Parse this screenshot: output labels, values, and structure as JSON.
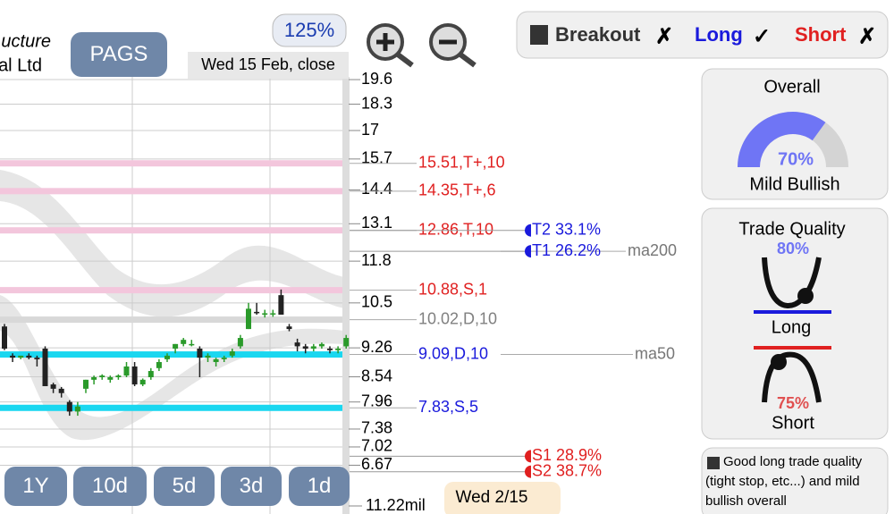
{
  "ui": {
    "company_line1": "ucture",
    "company_line2": "al Ltd",
    "symbol": "PAGS",
    "zoom": "125%",
    "date_label": "Wed 15 Feb, close",
    "signals": {
      "breakout": "Breakout",
      "breakout_mark": "✗",
      "long": "Long",
      "long_mark": "✓",
      "short": "Short",
      "short_mark": "✗"
    },
    "overall": {
      "title": "Overall",
      "score": {
        "value": 70,
        "label": "70%"
      },
      "verdict": "Mild Bullish"
    },
    "trade_quality": {
      "title": "Trade Quality",
      "long_score": "80%",
      "long_label": "Long",
      "short_score": "75%",
      "short_label": "Short"
    },
    "note": "Good long trade quality (tight stop, etc...) and mild bullish overall",
    "periods": [
      "1Y",
      "10d",
      "5d",
      "3d",
      "1d"
    ],
    "volume_label": "11.22mil",
    "cursor_date": "Wed 2/15"
  },
  "chart_data": {
    "type": "candlestick",
    "log_scale": true,
    "grid": true,
    "ylim": [
      5.82,
      19.75
    ],
    "yticks": [
      19.6,
      18.3,
      17,
      15.7,
      14.4,
      13.1,
      11.8,
      10.5,
      9.26,
      8.54,
      7.96,
      7.38,
      7.02,
      6.67
    ],
    "open": [
      9.83,
      9.06,
      9.01,
      9.06,
      9.01,
      9.24,
      8.36,
      8.26,
      7.96,
      7.75,
      8.26,
      8.47,
      8.53,
      8.47,
      8.53,
      8.57,
      8.79,
      8.36,
      8.53,
      8.75,
      8.97,
      9.24,
      9.36,
      9.36,
      9.24,
      9.01,
      8.9,
      8.97,
      9.06,
      9.3,
      9.76,
      10.24,
      10.16,
      10.2,
      10.73,
      9.83,
      9.4,
      9.3,
      9.24,
      9.3,
      9.24,
      9.2,
      9.3
    ],
    "high": [
      9.9,
      9.12,
      9.06,
      9.12,
      9.06,
      9.3,
      8.4,
      8.3,
      8.0,
      7.96,
      8.47,
      8.57,
      8.6,
      8.57,
      8.6,
      8.9,
      8.9,
      8.5,
      8.75,
      8.97,
      9.12,
      9.36,
      9.52,
      9.47,
      9.3,
      9.12,
      9.01,
      9.06,
      9.24,
      9.6,
      10.5,
      10.5,
      10.3,
      10.3,
      10.9,
      9.9,
      9.5,
      9.36,
      9.36,
      9.4,
      9.3,
      9.3,
      9.6
    ],
    "low": [
      9.2,
      8.9,
      8.97,
      8.97,
      8.79,
      8.32,
      8.16,
      8.06,
      7.66,
      7.66,
      8.16,
      8.36,
      8.47,
      8.4,
      8.47,
      8.53,
      8.32,
      8.32,
      8.47,
      8.68,
      8.9,
      9.12,
      9.3,
      9.3,
      8.53,
      8.9,
      8.79,
      8.9,
      9.01,
      9.24,
      9.76,
      10.16,
      10.08,
      10.1,
      10.16,
      9.7,
      9.17,
      9.12,
      9.17,
      9.24,
      9.12,
      9.12,
      9.24
    ],
    "close": [
      9.24,
      9.01,
      9.06,
      9.01,
      8.97,
      8.32,
      8.26,
      8.16,
      7.75,
      7.86,
      8.47,
      8.53,
      8.57,
      8.53,
      8.57,
      8.79,
      8.36,
      8.47,
      8.68,
      8.9,
      9.06,
      9.36,
      9.47,
      9.36,
      9.01,
      9.06,
      8.97,
      9.01,
      9.17,
      9.52,
      10.33,
      10.2,
      10.2,
      10.2,
      10.16,
      9.76,
      9.3,
      9.24,
      9.3,
      9.36,
      9.2,
      9.24,
      9.52
    ],
    "up_color": "#2a9a2a",
    "down_color": "#222222",
    "levels": [
      {
        "value": 15.51,
        "label": "15.51,T+,10",
        "color": "#e02020",
        "band": "#f3c6dc"
      },
      {
        "value": 14.35,
        "label": "14.35,T+,6",
        "color": "#e02020",
        "band": "#f3c6dc"
      },
      {
        "value": 12.86,
        "label": "12.86,T,10",
        "color": "#e02020",
        "band": "#f3c6dc"
      },
      {
        "value": 10.88,
        "label": "10.88,S,1",
        "color": "#e02020",
        "band": "#f3c6dc"
      },
      {
        "value": 10.02,
        "label": "10.02,D,10",
        "color": "#808080",
        "band": "#d8d8d8"
      },
      {
        "value": 9.09,
        "label": "9.09,D,10",
        "color": "#1a1adc",
        "band": "#1ad7f0"
      },
      {
        "value": 7.83,
        "label": "7.83,S,5",
        "color": "#1a1adc",
        "band": "#1ad7f0"
      }
    ],
    "targets": [
      {
        "value": 12.86,
        "label": "T2 33.1%",
        "color": "#1a1adc"
      },
      {
        "value": 12.13,
        "label": "T1 26.2%",
        "color": "#1a1adc"
      },
      {
        "value": 6.84,
        "label": "S1 28.9%",
        "color": "#e02020"
      },
      {
        "value": 6.55,
        "label": "S2 38.7%",
        "color": "#e02020"
      }
    ],
    "moving_averages": [
      {
        "value": 12.13,
        "label": "ma200"
      },
      {
        "value": 9.09,
        "label": "ma50"
      }
    ]
  }
}
